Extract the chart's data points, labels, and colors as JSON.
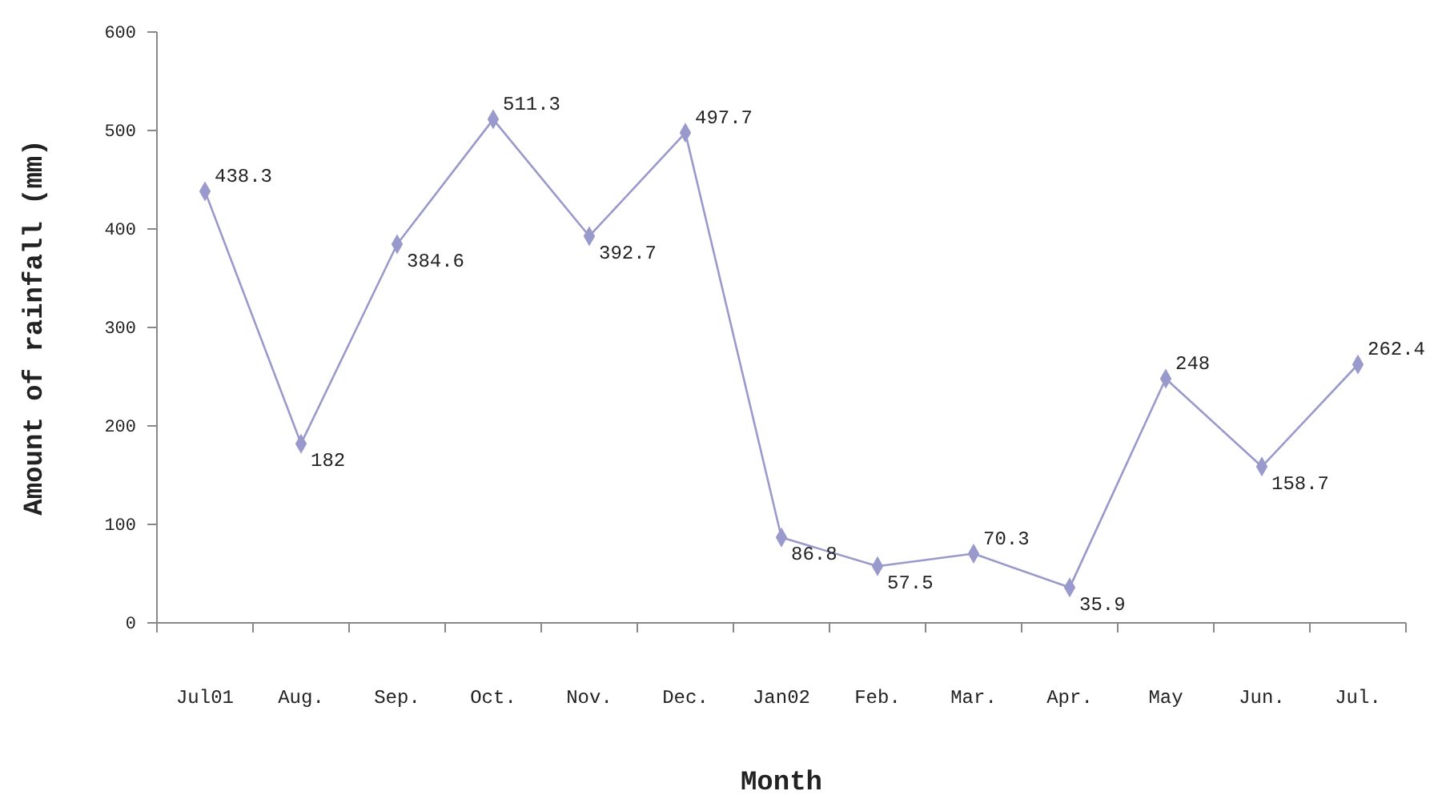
{
  "chart_data": {
    "type": "line",
    "xlabel": "Month",
    "ylabel": "Amount of rainfall (mm)",
    "categories": [
      "Jul01",
      "Aug.",
      "Sep.",
      "Oct.",
      "Nov.",
      "Dec.",
      "Jan02",
      "Feb.",
      "Mar.",
      "Apr.",
      "May",
      "Jun.",
      "Jul."
    ],
    "series": [
      {
        "color": "#9999cc",
        "values": [
          438.3,
          182,
          384.6,
          511.3,
          392.7,
          497.7,
          86.8,
          57.5,
          70.3,
          35.9,
          248,
          158.7,
          262.4
        ]
      }
    ],
    "ylim": [
      0,
      600
    ],
    "yticks": [
      0,
      100,
      200,
      300,
      400,
      500,
      600
    ],
    "grid": false,
    "marker": "diamond",
    "line_style": "solid",
    "data_labels": true
  }
}
